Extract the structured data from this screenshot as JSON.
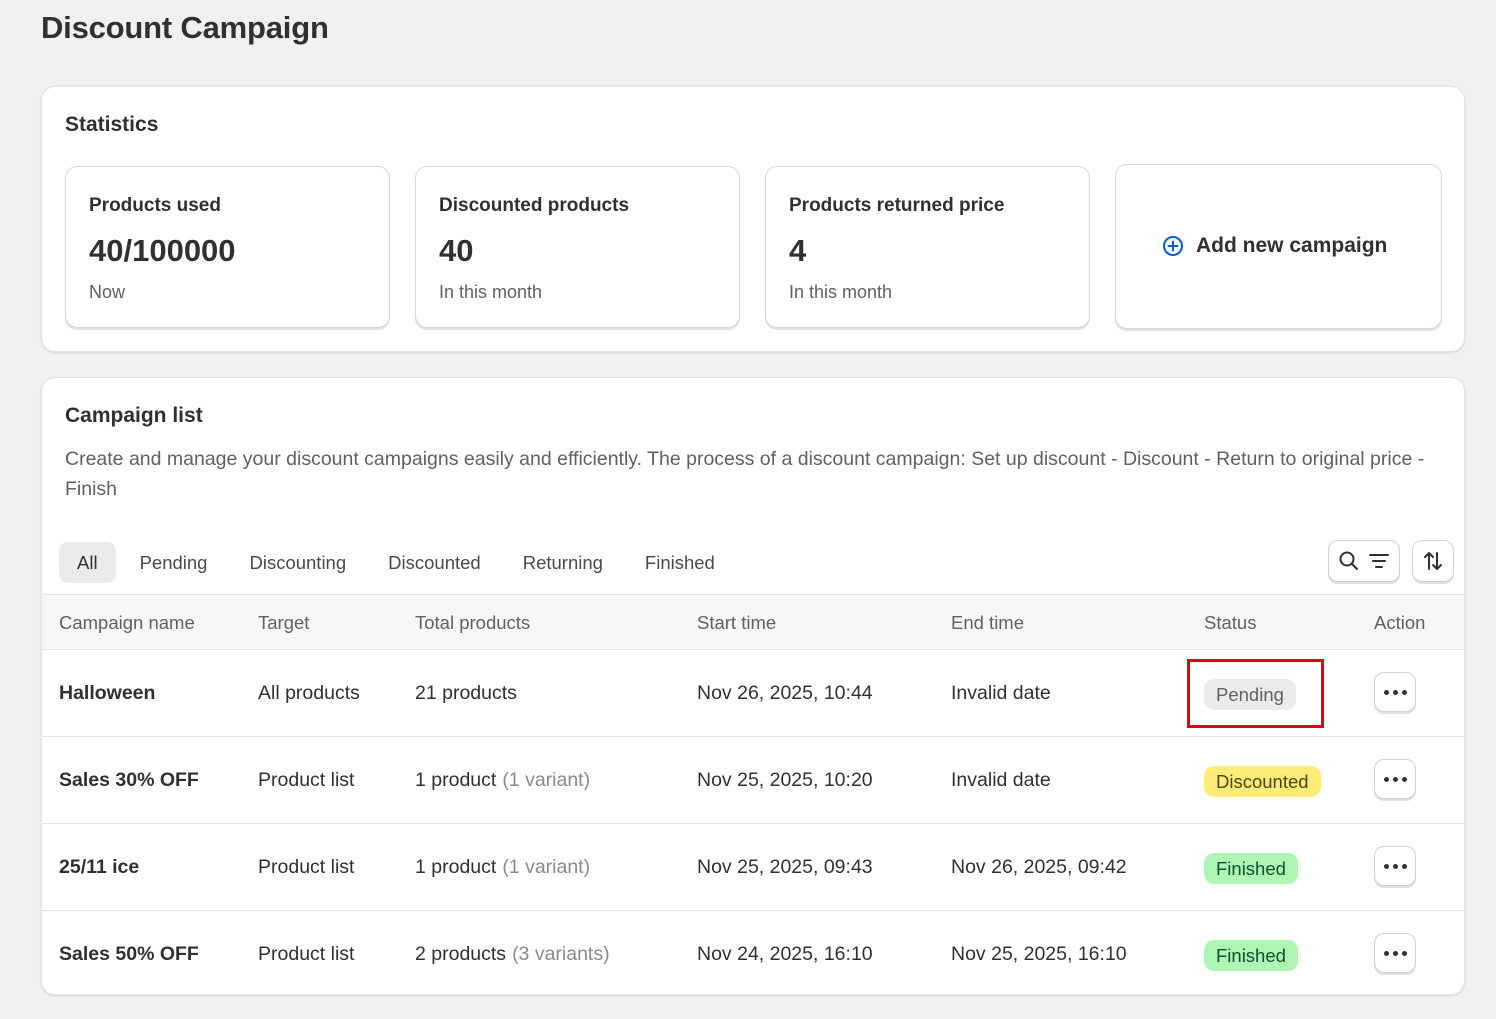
{
  "page": {
    "title": "Discount Campaign"
  },
  "statistics": {
    "title": "Statistics",
    "cards": [
      {
        "label": "Products used",
        "value": "40/100000",
        "sub": "Now"
      },
      {
        "label": "Discounted products",
        "value": "40",
        "sub": "In this month"
      },
      {
        "label": "Products returned price",
        "value": "4",
        "sub": "In this month"
      }
    ],
    "add_button": {
      "label": "Add new campaign",
      "icon": "plus-circle-icon",
      "icon_color": "#005bd3"
    }
  },
  "campaign_list": {
    "title": "Campaign list",
    "description": "Create and manage your discount campaigns easily and efficiently. The process of a discount campaign: Set up discount - Discount - Return to original price - Finish",
    "tabs": [
      "All",
      "Pending",
      "Discounting",
      "Discounted",
      "Returning",
      "Finished"
    ],
    "active_tab": "All",
    "toolbar": {
      "search_filter_icon": "search-filter-icon",
      "sort_icon": "sort-icon"
    },
    "columns": [
      "Campaign name",
      "Target",
      "Total products",
      "Start time",
      "End time",
      "Status",
      "Action"
    ],
    "rows": [
      {
        "name": "Halloween",
        "target": "All products",
        "products": "21 products",
        "variants": "",
        "start": "Nov 26, 2025, 10:44",
        "end": "Invalid date",
        "status": "Pending",
        "status_type": "pending"
      },
      {
        "name": "Sales 30% OFF",
        "target": "Product list",
        "products": "1 product",
        "variants": "(1 variant)",
        "start": "Nov 25, 2025, 10:20",
        "end": "Invalid date",
        "status": "Discounted",
        "status_type": "discounted"
      },
      {
        "name": "25/11 ice",
        "target": "Product list",
        "products": "1 product",
        "variants": "(1 variant)",
        "start": "Nov 25, 2025, 09:43",
        "end": "Nov 26, 2025, 09:42",
        "status": "Finished",
        "status_type": "finished"
      },
      {
        "name": "Sales 50% OFF",
        "target": "Product list",
        "products": "2 products",
        "variants": "(3 variants)",
        "start": "Nov 24, 2025, 16:10",
        "end": "Nov 25, 2025, 16:10",
        "status": "Finished",
        "status_type": "finished"
      }
    ]
  },
  "colors": {
    "pending_badge": "#ebebeb",
    "discounted_badge": "#ffeb78",
    "finished_badge": "#aff5b4",
    "highlight_box": "#e8000b"
  }
}
